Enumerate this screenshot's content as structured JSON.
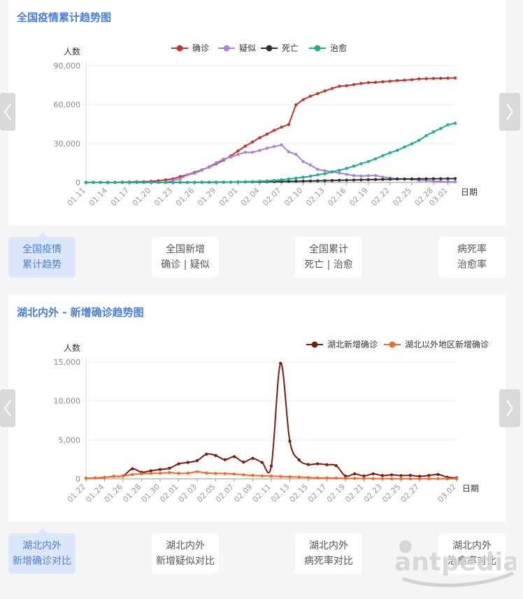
{
  "card1": {
    "title": "全国疫情累计趋势图"
  },
  "card2": {
    "title": "湖北内外 - 新增确诊趋势图"
  },
  "tabs1": [
    {
      "lines": [
        "全国疫情",
        "累计趋势"
      ],
      "active": true
    },
    {
      "lines": [
        "全国新增",
        "确诊 | 疑似"
      ],
      "active": false
    },
    {
      "lines": [
        "全国累计",
        "死亡 | 治愈"
      ],
      "active": false
    },
    {
      "lines": [
        "病死率",
        "治愈率"
      ],
      "active": false
    }
  ],
  "tabs2": [
    {
      "lines": [
        "湖北内外",
        "新增确诊对比"
      ],
      "active": true
    },
    {
      "lines": [
        "湖北内外",
        "新增疑似对比"
      ],
      "active": false
    },
    {
      "lines": [
        "湖北内外",
        "病死率对比"
      ],
      "active": false
    },
    {
      "lines": [
        "湖北内外",
        "治愈率对比"
      ],
      "active": false
    }
  ],
  "nav": {
    "prev_icon": "chevron-left-icon",
    "next_icon": "chevron-right-icon"
  },
  "watermark": {
    "text": "antpedia"
  },
  "chart_data": [
    {
      "type": "line",
      "ylabel": "人数",
      "xlabel": "日期",
      "ylim": [
        0,
        90000
      ],
      "yticks": [
        0,
        30000,
        60000,
        90000
      ],
      "ytick_labels": [
        "0",
        "30,000",
        "60,000",
        "90,000"
      ],
      "x": [
        "01.11",
        "01.12",
        "01.13",
        "01.14",
        "01.15",
        "01.16",
        "01.17",
        "01.18",
        "01.19",
        "01.20",
        "01.21",
        "01.22",
        "01.23",
        "01.24",
        "01.25",
        "01.26",
        "01.27",
        "01.28",
        "01.29",
        "01.30",
        "01.31",
        "02.01",
        "02.02",
        "02.03",
        "02.04",
        "02.05",
        "02.06",
        "02.07",
        "02.08",
        "02.09",
        "02.10",
        "02.11",
        "02.12",
        "02.13",
        "02.14",
        "02.15",
        "02.16",
        "02.17",
        "02.18",
        "02.19",
        "02.20",
        "02.21",
        "02.22",
        "02.23",
        "02.24",
        "02.25",
        "02.26",
        "02.27",
        "02.28",
        "02.29",
        "03.01",
        "03.02"
      ],
      "xtick_labels": [
        "01.11",
        "01.14",
        "01.17",
        "01.20",
        "01.23",
        "01.26",
        "01.29",
        "02.01",
        "02.04",
        "02.07",
        "02.10",
        "02.13",
        "02.16",
        "02.19",
        "02.22",
        "02.25",
        "02.28",
        "03.01"
      ],
      "legend_position": "top-center",
      "series": [
        {
          "name": "确诊",
          "color": "#c23531",
          "values": [
            41,
            41,
            41,
            45,
            62,
            198,
            291,
            440,
            571,
            830,
            1287,
            1975,
            2744,
            4515,
            5974,
            7711,
            9692,
            11791,
            14380,
            17205,
            20438,
            24324,
            28018,
            31161,
            34546,
            37198,
            40171,
            42638,
            44653,
            59804,
            63851,
            66492,
            68500,
            70548,
            72436,
            74185,
            74576,
            75465,
            76288,
            76936,
            77150,
            77658,
            78064,
            78497,
            78824,
            79251,
            79824,
            80026,
            80151,
            80270,
            80409,
            80552
          ]
        },
        {
          "name": "疑似",
          "color": "#a983d6",
          "values": [
            0,
            0,
            0,
            0,
            0,
            0,
            0,
            0,
            0,
            0,
            0,
            0,
            1500,
            2684,
            5794,
            6973,
            9239,
            12167,
            15238,
            17988,
            19544,
            21558,
            23214,
            23260,
            24702,
            26359,
            27657,
            28942,
            23589,
            21675,
            16067,
            13435,
            10109,
            8969,
            8228,
            7264,
            6242,
            5248,
            4922,
            5206,
            5365,
            4148,
            3434,
            2824,
            2491,
            2358,
            1527,
            1418,
            851,
            715,
            587,
            520
          ]
        },
        {
          "name": "死亡",
          "color": "#2f2f2f",
          "values": [
            1,
            1,
            1,
            1,
            1,
            2,
            2,
            3,
            3,
            6,
            9,
            17,
            25,
            41,
            56,
            80,
            106,
            132,
            170,
            213,
            259,
            304,
            361,
            425,
            490,
            563,
            636,
            722,
            811,
            908,
            1016,
            1113,
            1259,
            1380,
            1523,
            1665,
            1770,
            1868,
            2004,
            2118,
            2236,
            2345,
            2442,
            2592,
            2663,
            2715,
            2744,
            2788,
            2835,
            2870,
            2912,
            2943
          ]
        },
        {
          "name": "治愈",
          "color": "#1fae94",
          "values": [
            0,
            0,
            0,
            0,
            0,
            0,
            0,
            0,
            0,
            0,
            0,
            0,
            34,
            38,
            49,
            51,
            60,
            103,
            124,
            171,
            243,
            328,
            475,
            632,
            892,
            1153,
            1540,
            2050,
            2649,
            3281,
            3996,
            4740,
            5911,
            6723,
            8096,
            9419,
            10844,
            12552,
            14376,
            16155,
            18264,
            20659,
            22888,
            24734,
            27323,
            29745,
            32495,
            36117,
            39002,
            41625,
            44462,
            45611
          ]
        }
      ]
    },
    {
      "type": "line",
      "ylabel": "人数",
      "xlabel": "日期",
      "ylim": [
        0,
        15000
      ],
      "yticks": [
        0,
        5000,
        10000,
        15000
      ],
      "ytick_labels": [
        "0",
        "5,000",
        "10,000",
        "15,000"
      ],
      "x": [
        "01.22",
        "01.23",
        "01.24",
        "01.25",
        "01.26",
        "01.27",
        "01.28",
        "01.29",
        "01.30",
        "01.31",
        "02.01",
        "02.02",
        "02.03",
        "02.04",
        "02.05",
        "02.06",
        "02.07",
        "02.08",
        "02.09",
        "02.10",
        "02.11",
        "02.12",
        "02.13",
        "02.14",
        "02.15",
        "02.16",
        "02.17",
        "02.18",
        "02.19",
        "02.20",
        "02.21",
        "02.22",
        "02.23",
        "02.24",
        "02.25",
        "02.26",
        "02.27",
        "02.28",
        "02.29",
        "03.01",
        "03.02"
      ],
      "xtick_labels": [
        "01.22",
        "01.24",
        "01.26",
        "01.28",
        "01.30",
        "02.01",
        "02.03",
        "02.05",
        "02.07",
        "02.09",
        "02.11",
        "02.13",
        "02.15",
        "02.17",
        "02.19",
        "02.21",
        "02.23",
        "02.25",
        "02.27",
        "03.02"
      ],
      "legend_position": "top-right",
      "series": [
        {
          "name": "湖北新增确诊",
          "color": "#7b1c10",
          "values": [
            70,
            105,
            180,
            320,
            370,
            1290,
            840,
            1030,
            1200,
            1350,
            1920,
            2100,
            2340,
            3160,
            2990,
            2450,
            2840,
            2150,
            2620,
            2100,
            1640,
            14840,
            4820,
            2420,
            1840,
            1930,
            1810,
            1690,
            350,
            630,
            360,
            630,
            420,
            500,
            410,
            440,
            320,
            420,
            560,
            200,
            110
          ]
        },
        {
          "name": "湖北以外地区新增确诊",
          "color": "#f36c21",
          "values": [
            60,
            100,
            190,
            300,
            360,
            560,
            650,
            700,
            720,
            790,
            700,
            720,
            910,
            740,
            690,
            670,
            610,
            510,
            440,
            380,
            350,
            300,
            260,
            230,
            160,
            120,
            110,
            90,
            60,
            50,
            30,
            30,
            20,
            10,
            10,
            10,
            10,
            10,
            10,
            10,
            10
          ]
        }
      ]
    }
  ]
}
